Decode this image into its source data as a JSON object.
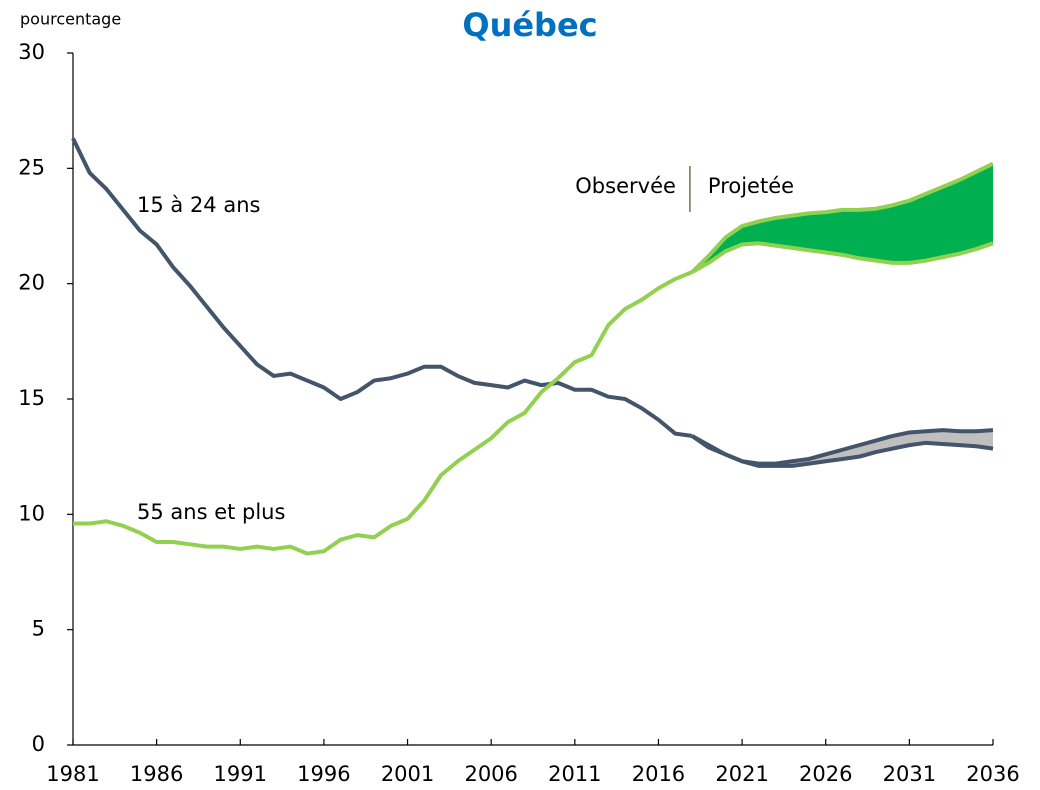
{
  "chart_data": {
    "type": "line",
    "title": "Québec",
    "y_label": "pourcentage",
    "annotations": [
      "Observée",
      "Projetée"
    ],
    "x": [
      1981,
      1982,
      1983,
      1984,
      1985,
      1986,
      1987,
      1988,
      1989,
      1990,
      1991,
      1992,
      1993,
      1994,
      1995,
      1996,
      1997,
      1998,
      1999,
      2000,
      2001,
      2002,
      2003,
      2004,
      2005,
      2006,
      2007,
      2008,
      2009,
      2010,
      2011,
      2012,
      2013,
      2014,
      2015,
      2016,
      2017,
      2018,
      2019,
      2020,
      2021,
      2022,
      2023,
      2024,
      2025,
      2026,
      2027,
      2028,
      2029,
      2030,
      2031,
      2032,
      2033,
      2034,
      2035,
      2036
    ],
    "xlim": [
      1981,
      2036
    ],
    "xticks": [
      1981,
      1986,
      1991,
      1996,
      2001,
      2006,
      2011,
      2016,
      2021,
      2026,
      2031,
      2036
    ],
    "ylim": [
      0,
      30
    ],
    "yticks": [
      0,
      5,
      10,
      15,
      20,
      25,
      30
    ],
    "series": [
      {
        "name": "15 à 24 ans",
        "color": "#44546a",
        "band_color": "#bfbfbf",
        "values": [
          26.3,
          24.8,
          24.1,
          23.2,
          22.3,
          21.7,
          20.7,
          19.9,
          19.0,
          18.1,
          17.3,
          16.5,
          16.0,
          16.1,
          15.8,
          15.5,
          15.0,
          15.3,
          15.8,
          15.9,
          16.1,
          16.4,
          16.4,
          16.0,
          15.7,
          15.6,
          15.5,
          15.8,
          15.6,
          15.7,
          15.4,
          15.4,
          15.1,
          15.0,
          14.6,
          14.1,
          13.5,
          13.4,
          null,
          null,
          null,
          null,
          null,
          null,
          null,
          null,
          null,
          null,
          null,
          null,
          null,
          null,
          null,
          null,
          null,
          null
        ],
        "projection_high": [
          null,
          null,
          null,
          null,
          null,
          null,
          null,
          null,
          null,
          null,
          null,
          null,
          null,
          null,
          null,
          null,
          null,
          null,
          null,
          null,
          null,
          null,
          null,
          null,
          null,
          null,
          null,
          null,
          null,
          null,
          null,
          null,
          null,
          null,
          null,
          null,
          null,
          13.4,
          13.0,
          12.6,
          12.3,
          12.2,
          12.2,
          12.3,
          12.4,
          12.6,
          12.8,
          13.0,
          13.2,
          13.4,
          13.55,
          13.6,
          13.65,
          13.6,
          13.6,
          13.65
        ],
        "projection_low": [
          null,
          null,
          null,
          null,
          null,
          null,
          null,
          null,
          null,
          null,
          null,
          null,
          null,
          null,
          null,
          null,
          null,
          null,
          null,
          null,
          null,
          null,
          null,
          null,
          null,
          null,
          null,
          null,
          null,
          null,
          null,
          null,
          null,
          null,
          null,
          null,
          null,
          13.4,
          12.9,
          12.6,
          12.3,
          12.1,
          12.1,
          12.1,
          12.2,
          12.3,
          12.4,
          12.5,
          12.7,
          12.85,
          13.0,
          13.1,
          13.05,
          13.0,
          12.95,
          12.85
        ]
      },
      {
        "name": "55 ans et plus",
        "color": "#92d050",
        "band_color": "#00b050",
        "values": [
          9.6,
          9.6,
          9.7,
          9.5,
          9.2,
          8.8,
          8.8,
          8.7,
          8.6,
          8.6,
          8.5,
          8.6,
          8.5,
          8.6,
          8.3,
          8.4,
          8.9,
          9.1,
          9.0,
          9.5,
          9.8,
          10.6,
          11.7,
          12.3,
          12.8,
          13.3,
          14.0,
          14.4,
          15.3,
          15.9,
          16.6,
          16.9,
          18.2,
          18.9,
          19.3,
          19.8,
          20.2,
          20.5,
          null,
          null,
          null,
          null,
          null,
          null,
          null,
          null,
          null,
          null,
          null,
          null,
          null,
          null,
          null,
          null,
          null,
          null
        ],
        "projection_high": [
          null,
          null,
          null,
          null,
          null,
          null,
          null,
          null,
          null,
          null,
          null,
          null,
          null,
          null,
          null,
          null,
          null,
          null,
          null,
          null,
          null,
          null,
          null,
          null,
          null,
          null,
          null,
          null,
          null,
          null,
          null,
          null,
          null,
          null,
          null,
          null,
          null,
          20.5,
          21.2,
          22.0,
          22.5,
          22.7,
          22.85,
          22.95,
          23.05,
          23.1,
          23.2,
          23.2,
          23.25,
          23.4,
          23.6,
          23.9,
          24.2,
          24.5,
          24.85,
          25.2
        ],
        "projection_low": [
          null,
          null,
          null,
          null,
          null,
          null,
          null,
          null,
          null,
          null,
          null,
          null,
          null,
          null,
          null,
          null,
          null,
          null,
          null,
          null,
          null,
          null,
          null,
          null,
          null,
          null,
          null,
          null,
          null,
          null,
          null,
          null,
          null,
          null,
          null,
          null,
          null,
          20.5,
          20.9,
          21.4,
          21.7,
          21.75,
          21.65,
          21.55,
          21.45,
          21.35,
          21.25,
          21.1,
          21.0,
          20.9,
          20.9,
          21.0,
          21.15,
          21.3,
          21.5,
          21.75
        ]
      }
    ]
  }
}
